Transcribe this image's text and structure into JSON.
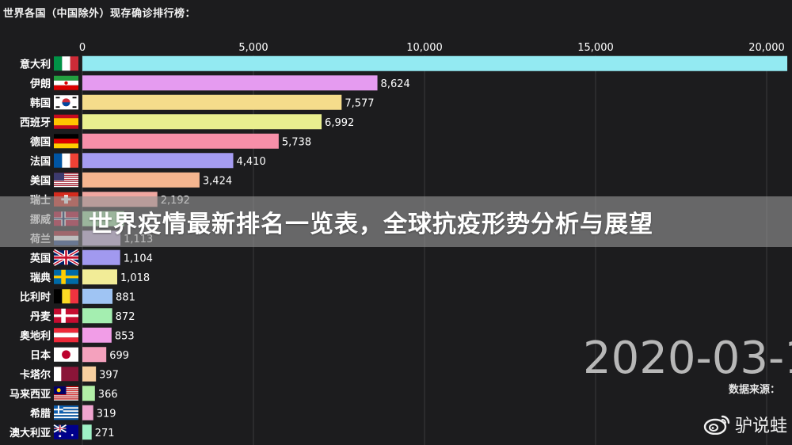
{
  "header": {
    "title": "世界各国（中国除外）现存确诊排行榜："
  },
  "banner": {
    "text": "世界疫情最新排名一览表，全球抗疫形势分析与展望"
  },
  "date_display": "2020-03-1",
  "source_label": "数据来源：",
  "watermark": {
    "text": "驴说蛙",
    "icon": "weibo-icon"
  },
  "chart_data": {
    "type": "bar",
    "orientation": "horizontal",
    "xlim": [
      0,
      20500
    ],
    "ticks": [
      0,
      5000,
      10000,
      15000,
      20000
    ],
    "tick_labels": [
      "0",
      "5,000",
      "10,000",
      "15,000",
      "20,000"
    ],
    "grid": true,
    "categories": [
      "意大利",
      "伊朗",
      "韩国",
      "西班牙",
      "德国",
      "法国",
      "美国",
      "瑞士",
      "挪威",
      "荷兰",
      "英国",
      "瑞典",
      "比利时",
      "丹麦",
      "奥地利",
      "日本",
      "卡塔尔",
      "马来西亚",
      "希腊",
      "澳大利亚"
    ],
    "values": [
      20603,
      8624,
      7577,
      6992,
      5738,
      4410,
      3424,
      2192,
      1220,
      1113,
      1104,
      1018,
      881,
      872,
      853,
      699,
      397,
      366,
      319,
      271
    ],
    "value_labels": [
      "",
      "8,624",
      "7,577",
      "6,992",
      "5,738",
      "4,410",
      "3,424",
      "2,192",
      "",
      "1,113",
      "1,104",
      "1,018",
      "881",
      "872",
      "853",
      "699",
      "397",
      "366",
      "319",
      "271"
    ],
    "colors": [
      "#93eaf2",
      "#e59bf0",
      "#f5dc8b",
      "#e9ef8f",
      "#f78fa9",
      "#a59cf2",
      "#f5b58f",
      "#f0a7a0",
      "#a4e7a5",
      "#c8b2e0",
      "#a199ef",
      "#f2ec97",
      "#9fc4f3",
      "#a4eeb0",
      "#f19de7",
      "#f4a1bd",
      "#f7cf9f",
      "#b1efa6",
      "#f0a4cf",
      "#9ff1c6"
    ],
    "flags": [
      "it",
      "ir",
      "kr",
      "es",
      "de",
      "fr",
      "us",
      "ch",
      "no",
      "nl",
      "gb",
      "se",
      "be",
      "dk",
      "at",
      "jp",
      "qa",
      "my",
      "gr",
      "au"
    ]
  }
}
